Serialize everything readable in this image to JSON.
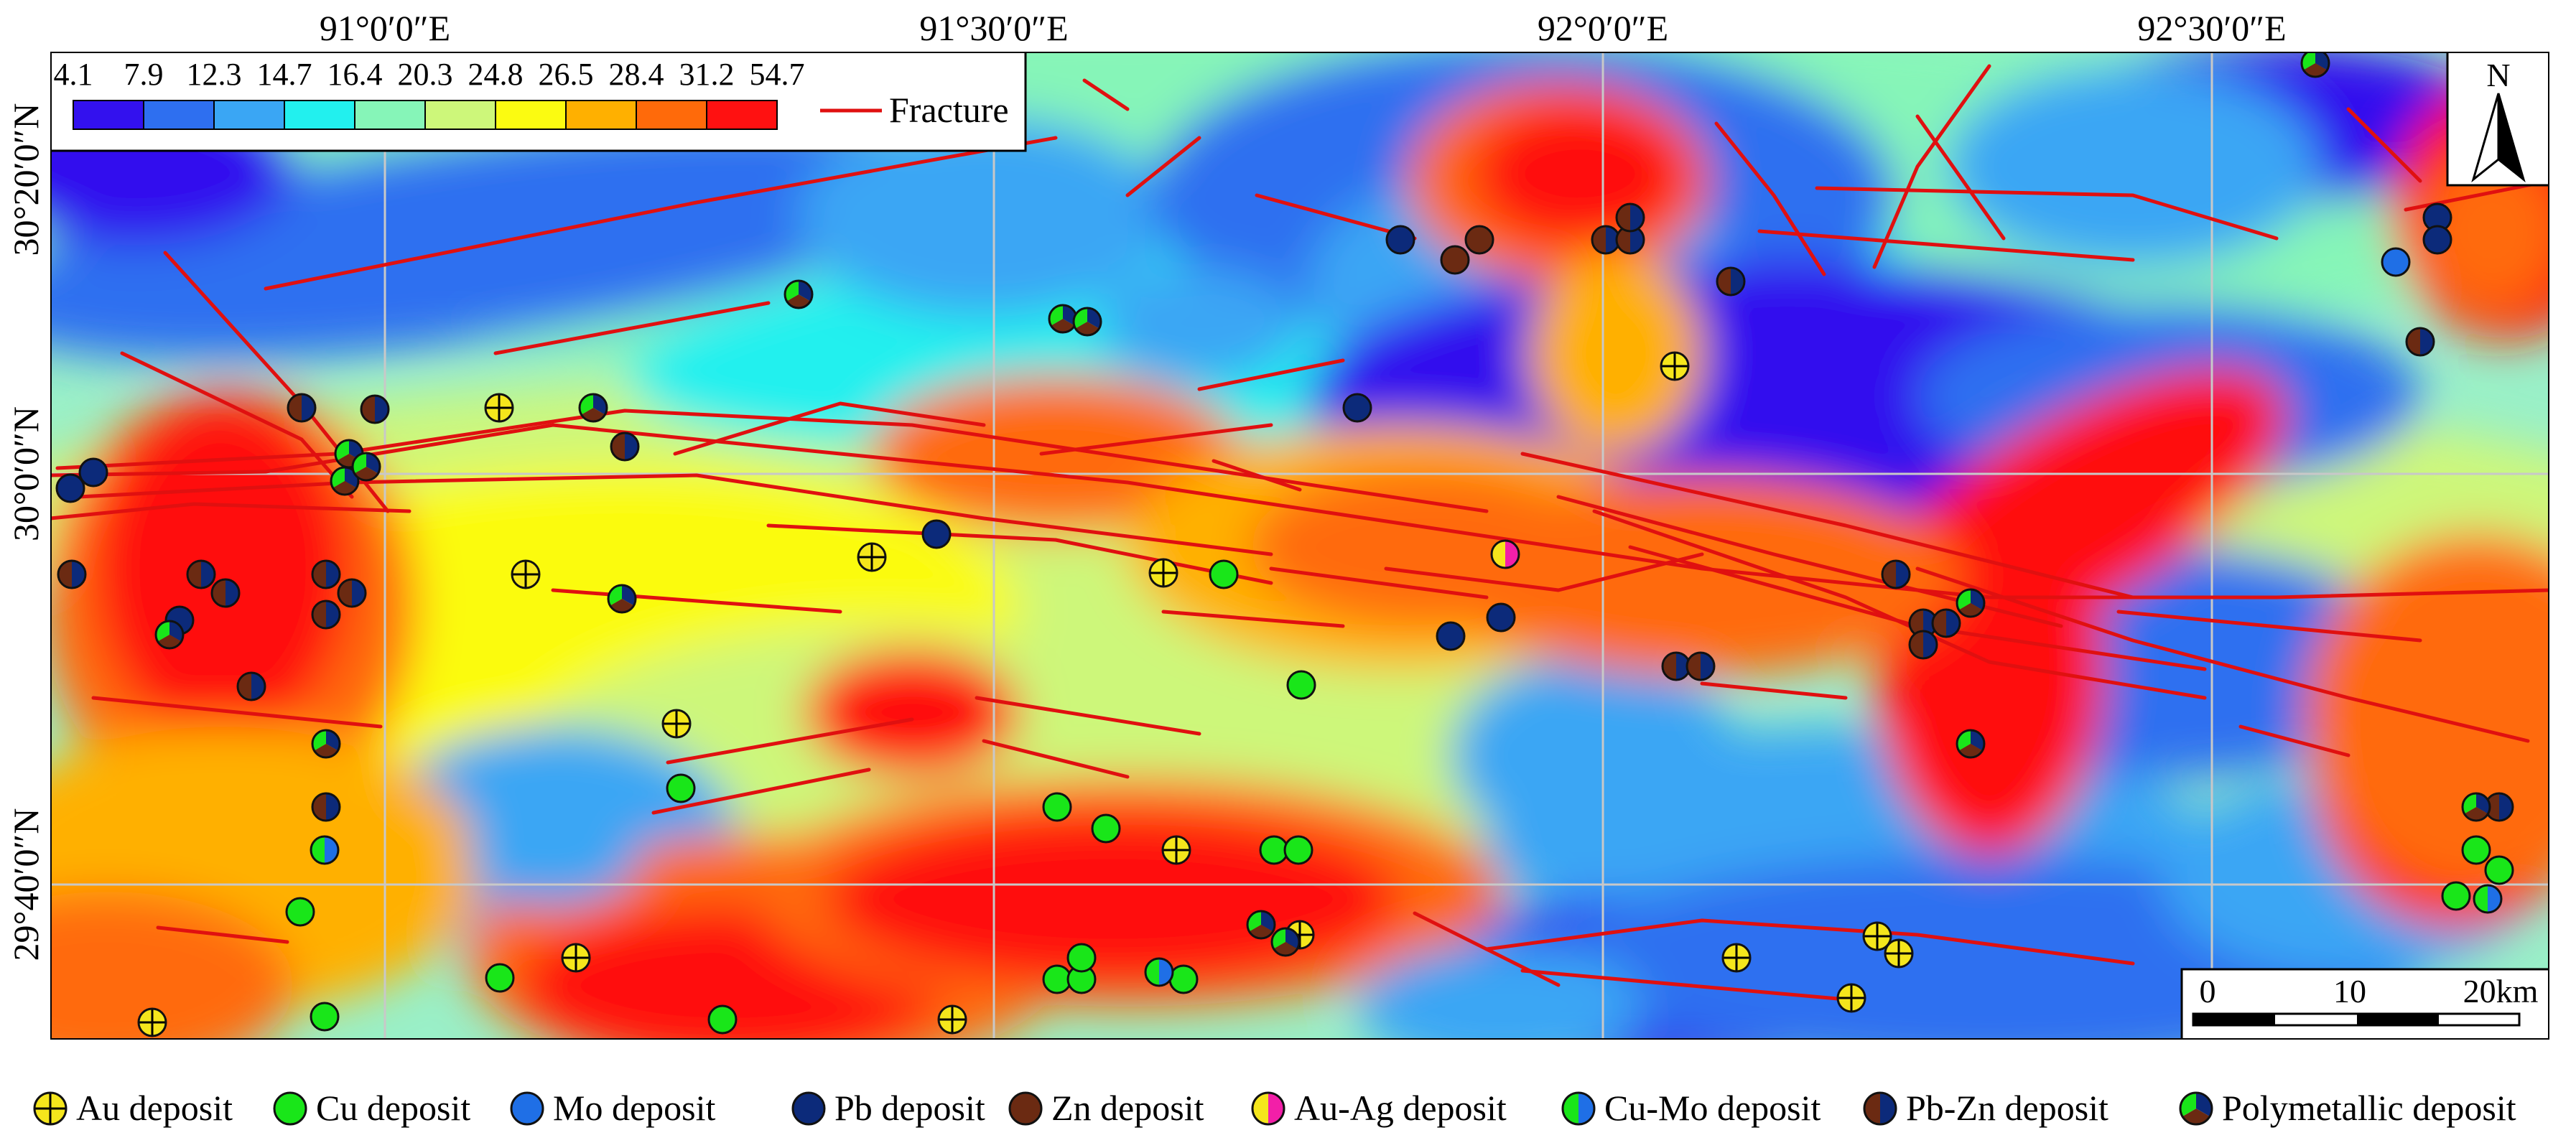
{
  "axes": {
    "longitude_labels": [
      "91°0′0″E",
      "91°30′0″E",
      "92°0′0″E",
      "92°30′0″E"
    ],
    "latitude_labels": [
      "30°20′0″N",
      "30°0′0″N",
      "29°40′0″N"
    ]
  },
  "color_scale": {
    "breaks": [
      "4.1",
      "7.9",
      "12.3",
      "14.7",
      "16.4",
      "20.3",
      "24.8",
      "26.5",
      "28.4",
      "31.2",
      "54.7"
    ],
    "colors": [
      "#3311ee",
      "#2e6ff0",
      "#3aa6f4",
      "#22f0ee",
      "#86f5b8",
      "#cdf77a",
      "#fbfb11",
      "#ffb000",
      "#ff6a0a",
      "#ff1111"
    ],
    "fracture_label": "Fracture",
    "fracture_color": "#e01010"
  },
  "north_arrow": {
    "label": "N"
  },
  "scale_bar": {
    "ticks": [
      "0",
      "10",
      "20km"
    ]
  },
  "deposit_types": [
    {
      "id": "au",
      "label": "Au deposit",
      "icon": "au-deposit-icon"
    },
    {
      "id": "cu",
      "label": "Cu deposit",
      "icon": "cu-deposit-icon"
    },
    {
      "id": "mo",
      "label": "Mo deposit",
      "icon": "mo-deposit-icon"
    },
    {
      "id": "pb",
      "label": "Pb deposit",
      "icon": "pb-deposit-icon"
    },
    {
      "id": "zn",
      "label": "Zn deposit",
      "icon": "zn-deposit-icon"
    },
    {
      "id": "auag",
      "label": "Au-Ag deposit",
      "icon": "au-ag-deposit-icon"
    },
    {
      "id": "cumo",
      "label": "Cu-Mo deposit",
      "icon": "cu-mo-deposit-icon"
    },
    {
      "id": "pbzn",
      "label": "Pb-Zn deposit",
      "icon": "pb-zn-deposit-icon"
    },
    {
      "id": "poly",
      "label": "Polymetallic deposit",
      "icon": "polymetallic-deposit-icon"
    }
  ],
  "symbol_colors": {
    "au": "#f5e61c",
    "cu": "#19e619",
    "mo": "#1f6fe6",
    "pb": "#0c2a7a",
    "zn": "#6b2a12",
    "ag": "#f21fa8",
    "outline": "#111111"
  }
}
